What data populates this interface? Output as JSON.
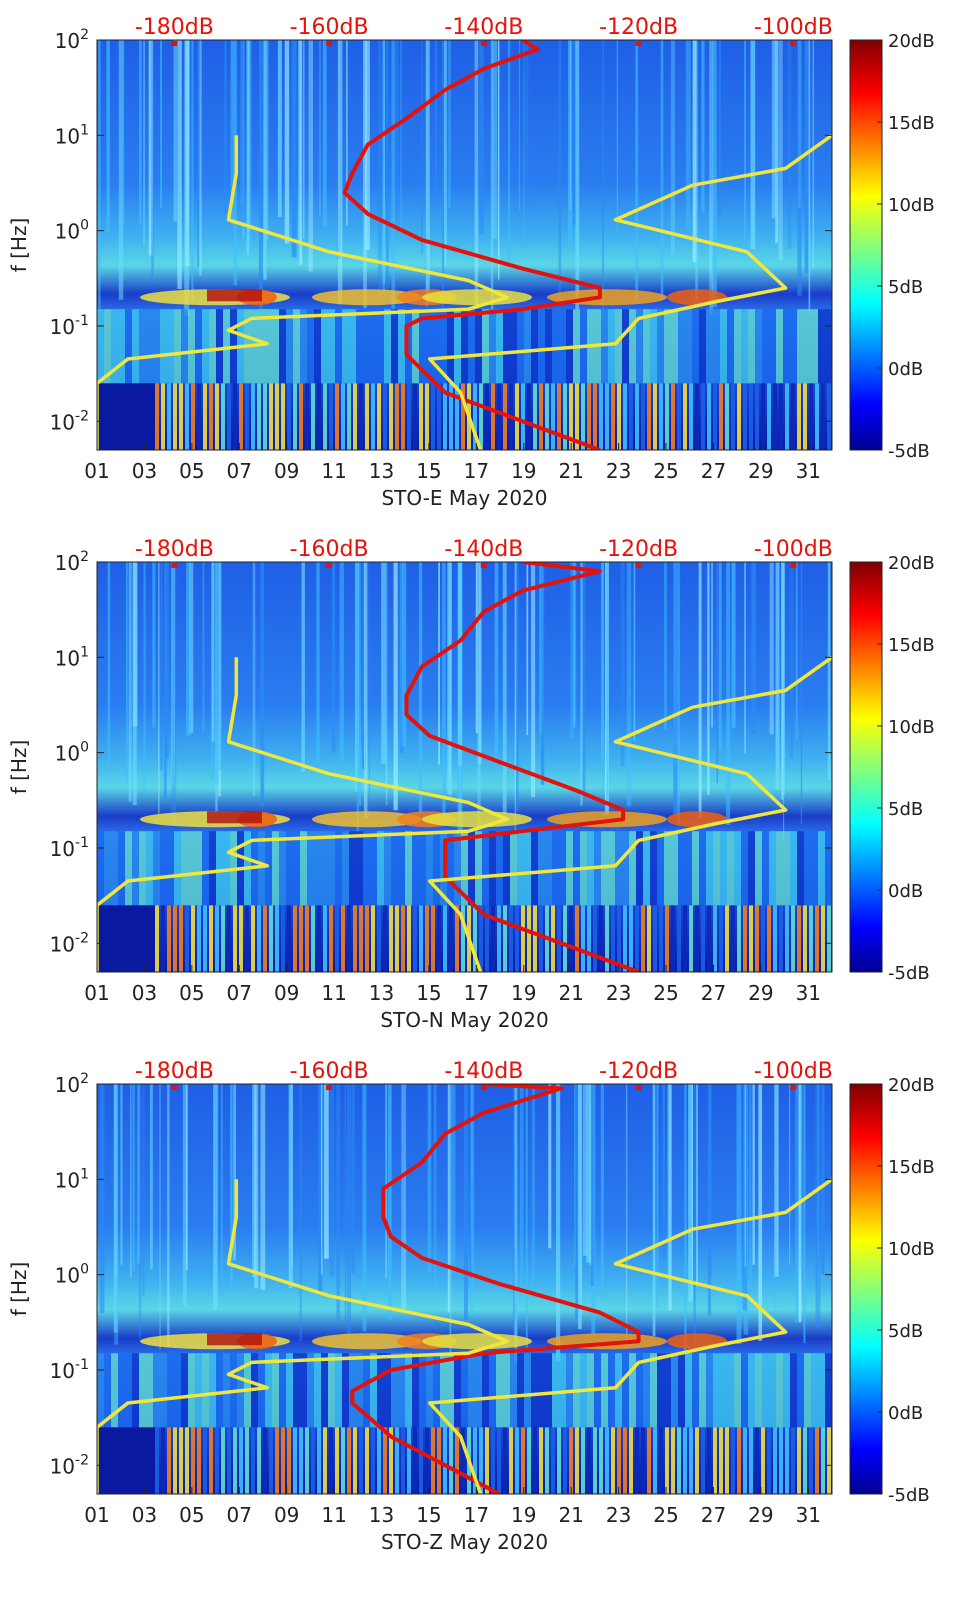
{
  "chart_data": [
    {
      "type": "heatmap",
      "station": "STO-E",
      "xlabel": "STO-E May 2020",
      "ylabel": "f [Hz]",
      "x_ticks": [
        "01",
        "03",
        "05",
        "07",
        "09",
        "11",
        "13",
        "15",
        "17",
        "19",
        "21",
        "23",
        "25",
        "27",
        "29",
        "31"
      ],
      "x_range_days": [
        1,
        32
      ],
      "y_scale": "log",
      "y_range_hz": [
        0.005,
        100
      ],
      "y_ticks": [
        {
          "exp": "2"
        },
        {
          "exp": "1"
        },
        {
          "exp": "0"
        },
        {
          "exp": "-1"
        },
        {
          "exp": "-2"
        }
      ],
      "y_tick_base": "10",
      "top_axis_ticks": [
        "-180dB",
        "-160dB",
        "-140dB",
        "-120dB",
        "-100dB"
      ],
      "top_axis_range_db": [
        -190,
        -95
      ],
      "colorbar": {
        "ticks": [
          "20dB",
          "15dB",
          "10dB",
          "5dB",
          "0dB",
          "-5dB"
        ],
        "range_db": [
          -5,
          20
        ]
      },
      "series": [
        {
          "name": "noise PSD (red, top dB axis)",
          "color": "#e3120b",
          "points": [
            [
              -135,
              100
            ],
            [
              -133,
              80
            ],
            [
              -140,
              50
            ],
            [
              -145,
              30
            ],
            [
              -150,
              15
            ],
            [
              -155,
              8
            ],
            [
              -157,
              4
            ],
            [
              -158,
              2.5
            ],
            [
              -155,
              1.5
            ],
            [
              -148,
              0.8
            ],
            [
              -135,
              0.4
            ],
            [
              -125,
              0.25
            ],
            [
              -125,
              0.2
            ],
            [
              -135,
              0.15
            ],
            [
              -148,
              0.12
            ],
            [
              -150,
              0.1
            ],
            [
              -150,
              0.05
            ],
            [
              -145,
              0.02
            ],
            [
              -135,
              0.01
            ],
            [
              -125,
              0.005
            ]
          ]
        },
        {
          "name": "low noise model (yellow, top dB axis)",
          "color": "#f0e63c",
          "points": [
            [
              -172,
              10
            ],
            [
              -172,
              4
            ],
            [
              -173,
              1.3
            ],
            [
              -160,
              0.6
            ],
            [
              -142,
              0.3
            ],
            [
              -137,
              0.2
            ],
            [
              -142,
              0.15
            ],
            [
              -170,
              0.12
            ],
            [
              -173,
              0.09
            ],
            [
              -168,
              0.065
            ],
            [
              -186,
              0.045
            ],
            [
              -190,
              0.025
            ],
            [
              -190,
              0.004
            ]
          ]
        },
        {
          "name": "high noise model (yellow, top dB axis)",
          "color": "#f0e63c",
          "points": [
            [
              -95,
              10
            ],
            [
              -101,
              4.5
            ],
            [
              -113,
              3
            ],
            [
              -123,
              1.3
            ],
            [
              -106,
              0.6
            ],
            [
              -101,
              0.25
            ],
            [
              -110,
              0.18
            ],
            [
              -120,
              0.12
            ],
            [
              -123,
              0.065
            ],
            [
              -147,
              0.045
            ],
            [
              -143,
              0.02
            ],
            [
              -140,
              0.004
            ]
          ]
        }
      ]
    },
    {
      "type": "heatmap",
      "station": "STO-N",
      "xlabel": "STO-N May 2020",
      "ylabel": "f [Hz]",
      "x_ticks": [
        "01",
        "03",
        "05",
        "07",
        "09",
        "11",
        "13",
        "15",
        "17",
        "19",
        "21",
        "23",
        "25",
        "27",
        "29",
        "31"
      ],
      "x_range_days": [
        1,
        32
      ],
      "y_scale": "log",
      "y_range_hz": [
        0.005,
        100
      ],
      "y_ticks": [
        {
          "exp": "2"
        },
        {
          "exp": "1"
        },
        {
          "exp": "0"
        },
        {
          "exp": "-1"
        },
        {
          "exp": "-2"
        }
      ],
      "y_tick_base": "10",
      "top_axis_ticks": [
        "-180dB",
        "-160dB",
        "-140dB",
        "-120dB",
        "-100dB"
      ],
      "top_axis_range_db": [
        -190,
        -95
      ],
      "colorbar": {
        "ticks": [
          "20dB",
          "15dB",
          "10dB",
          "5dB",
          "0dB",
          "-5dB"
        ],
        "range_db": [
          -5,
          20
        ]
      },
      "series": [
        {
          "name": "noise PSD (red, top dB axis)",
          "color": "#e3120b",
          "points": [
            [
              -135,
              100
            ],
            [
              -125,
              80
            ],
            [
              -135,
              50
            ],
            [
              -140,
              30
            ],
            [
              -143,
              15
            ],
            [
              -148,
              8
            ],
            [
              -150,
              4
            ],
            [
              -150,
              2.5
            ],
            [
              -147,
              1.5
            ],
            [
              -138,
              0.8
            ],
            [
              -128,
              0.4
            ],
            [
              -122,
              0.25
            ],
            [
              -122,
              0.2
            ],
            [
              -135,
              0.15
            ],
            [
              -145,
              0.12
            ],
            [
              -145,
              0.1
            ],
            [
              -145,
              0.05
            ],
            [
              -140,
              0.02
            ],
            [
              -130,
              0.01
            ],
            [
              -120,
              0.005
            ]
          ]
        },
        {
          "name": "low noise model (yellow, top dB axis)",
          "color": "#f0e63c",
          "points": [
            [
              -172,
              10
            ],
            [
              -172,
              4
            ],
            [
              -173,
              1.3
            ],
            [
              -160,
              0.6
            ],
            [
              -142,
              0.3
            ],
            [
              -137,
              0.2
            ],
            [
              -142,
              0.15
            ],
            [
              -170,
              0.12
            ],
            [
              -173,
              0.09
            ],
            [
              -168,
              0.065
            ],
            [
              -186,
              0.045
            ],
            [
              -190,
              0.025
            ],
            [
              -190,
              0.004
            ]
          ]
        },
        {
          "name": "high noise model (yellow, top dB axis)",
          "color": "#f0e63c",
          "points": [
            [
              -95,
              10
            ],
            [
              -101,
              4.5
            ],
            [
              -113,
              3
            ],
            [
              -123,
              1.3
            ],
            [
              -106,
              0.6
            ],
            [
              -101,
              0.25
            ],
            [
              -110,
              0.18
            ],
            [
              -120,
              0.12
            ],
            [
              -123,
              0.065
            ],
            [
              -147,
              0.045
            ],
            [
              -143,
              0.02
            ],
            [
              -140,
              0.004
            ]
          ]
        }
      ]
    },
    {
      "type": "heatmap",
      "station": "STO-Z",
      "xlabel": "STO-Z May 2020",
      "ylabel": "f [Hz]",
      "x_ticks": [
        "01",
        "03",
        "05",
        "07",
        "09",
        "11",
        "13",
        "15",
        "17",
        "19",
        "21",
        "23",
        "25",
        "27",
        "29",
        "31"
      ],
      "x_range_days": [
        1,
        32
      ],
      "y_scale": "log",
      "y_range_hz": [
        0.005,
        100
      ],
      "y_ticks": [
        {
          "exp": "2"
        },
        {
          "exp": "1"
        },
        {
          "exp": "0"
        },
        {
          "exp": "-1"
        },
        {
          "exp": "-2"
        }
      ],
      "y_tick_base": "10",
      "top_axis_ticks": [
        "-180dB",
        "-160dB",
        "-140dB",
        "-120dB",
        "-100dB"
      ],
      "top_axis_range_db": [
        -190,
        -95
      ],
      "colorbar": {
        "ticks": [
          "20dB",
          "15dB",
          "10dB",
          "5dB",
          "0dB",
          "-5dB"
        ],
        "range_db": [
          -5,
          20
        ]
      },
      "series": [
        {
          "name": "noise PSD (red, top dB axis)",
          "color": "#e3120b",
          "points": [
            [
              -140,
              100
            ],
            [
              -130,
              90
            ],
            [
              -140,
              50
            ],
            [
              -145,
              30
            ],
            [
              -148,
              15
            ],
            [
              -153,
              8
            ],
            [
              -153,
              4
            ],
            [
              -152,
              2.5
            ],
            [
              -148,
              1.5
            ],
            [
              -138,
              0.8
            ],
            [
              -125,
              0.4
            ],
            [
              -120,
              0.25
            ],
            [
              -120,
              0.2
            ],
            [
              -140,
              0.15
            ],
            [
              -152,
              0.1
            ],
            [
              -157,
              0.06
            ],
            [
              -157,
              0.045
            ],
            [
              -152,
              0.02
            ],
            [
              -145,
              0.01
            ],
            [
              -138,
              0.005
            ]
          ]
        },
        {
          "name": "low noise model (yellow, top dB axis)",
          "color": "#f0e63c",
          "points": [
            [
              -172,
              10
            ],
            [
              -172,
              4
            ],
            [
              -173,
              1.3
            ],
            [
              -160,
              0.6
            ],
            [
              -142,
              0.3
            ],
            [
              -137,
              0.2
            ],
            [
              -142,
              0.15
            ],
            [
              -170,
              0.12
            ],
            [
              -173,
              0.09
            ],
            [
              -168,
              0.065
            ],
            [
              -186,
              0.045
            ],
            [
              -190,
              0.025
            ],
            [
              -190,
              0.004
            ]
          ]
        },
        {
          "name": "high noise model (yellow, top dB axis)",
          "color": "#f0e63c",
          "points": [
            [
              -95,
              10
            ],
            [
              -101,
              4.5
            ],
            [
              -113,
              3
            ],
            [
              -123,
              1.3
            ],
            [
              -106,
              0.6
            ],
            [
              -101,
              0.25
            ],
            [
              -110,
              0.18
            ],
            [
              -120,
              0.12
            ],
            [
              -123,
              0.065
            ],
            [
              -147,
              0.045
            ],
            [
              -143,
              0.02
            ],
            [
              -140,
              0.004
            ]
          ]
        }
      ]
    }
  ]
}
